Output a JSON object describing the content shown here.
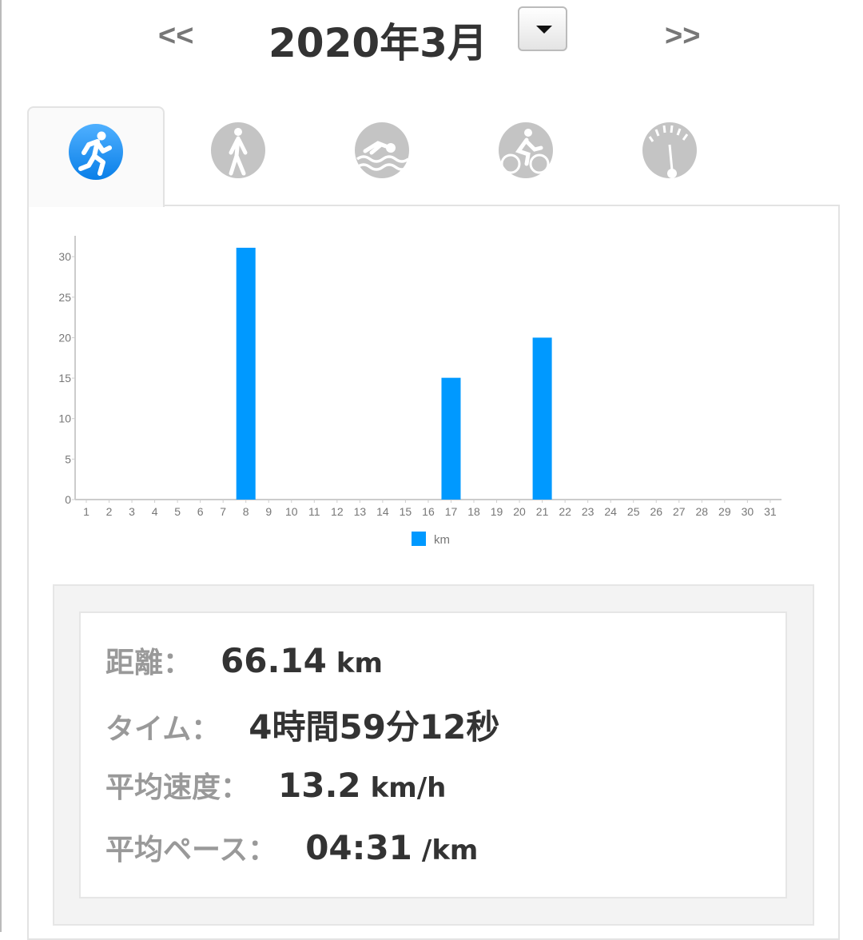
{
  "header": {
    "prev": "<<",
    "title": "2020年3月",
    "next": ">>"
  },
  "tabs": [
    {
      "icon": "running-icon",
      "active": true
    },
    {
      "icon": "walking-icon",
      "active": false
    },
    {
      "icon": "swimming-icon",
      "active": false
    },
    {
      "icon": "cycling-icon",
      "active": false
    },
    {
      "icon": "gauge-icon",
      "active": false
    }
  ],
  "colors": {
    "accent": "#0099ff",
    "inactive": "#bdbdbd"
  },
  "chart_data": {
    "type": "bar",
    "categories": [
      "1",
      "2",
      "3",
      "4",
      "5",
      "6",
      "7",
      "8",
      "9",
      "10",
      "11",
      "12",
      "13",
      "14",
      "15",
      "16",
      "17",
      "18",
      "19",
      "20",
      "21",
      "22",
      "23",
      "24",
      "25",
      "26",
      "27",
      "28",
      "29",
      "30",
      "31"
    ],
    "series": [
      {
        "name": "km",
        "values": [
          0,
          0,
          0,
          0,
          0,
          0,
          0,
          31.1,
          0,
          0,
          0,
          0,
          0,
          0,
          0,
          0,
          15.04,
          0,
          0,
          0,
          20.0,
          0,
          0,
          0,
          0,
          0,
          0,
          0,
          0,
          0,
          0
        ]
      }
    ],
    "yticks": [
      0,
      5,
      10,
      15,
      20,
      25,
      30
    ],
    "ylim": [
      0,
      32
    ],
    "legend": "bottom",
    "grid": false
  },
  "stats": [
    {
      "label": "距離：",
      "value": "66.14",
      "unit": "km"
    },
    {
      "label": "タイム：",
      "value": "4時間59分12秒",
      "unit": ""
    },
    {
      "label": "平均速度：",
      "value": "13.2",
      "unit": "km/h"
    },
    {
      "label": "平均ペース：",
      "value": "04:31",
      "unit": "/km"
    }
  ]
}
